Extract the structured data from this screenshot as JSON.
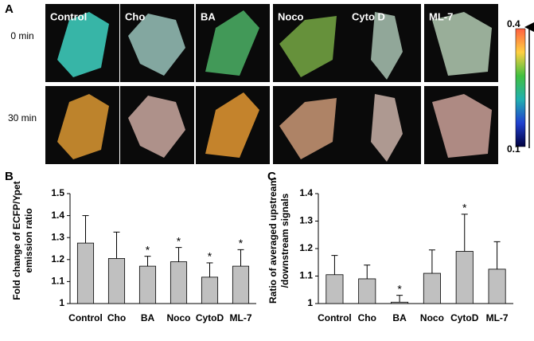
{
  "image_panel": {
    "label": "A",
    "columns": [
      "Control",
      "Cho",
      "BA",
      "Noco",
      "Cyto D",
      "ML-7"
    ],
    "rows": [
      "0 min",
      "30 min"
    ],
    "colorbar_ticks": [
      0.4,
      0.1
    ]
  },
  "chart_data": [
    {
      "type": "bar",
      "label": "B",
      "ylabel": [
        "Fold change of ECFP/Ypet",
        "emission ratio"
      ],
      "categories": [
        "Control",
        "Cho",
        "BA",
        "Noco",
        "CytoD",
        "ML-7"
      ],
      "values": [
        1.275,
        1.205,
        1.17,
        1.19,
        1.12,
        1.17
      ],
      "errors": [
        0.125,
        0.12,
        0.045,
        0.065,
        0.065,
        0.075
      ],
      "annotations": [
        null,
        null,
        "*",
        "*",
        "*",
        "*"
      ],
      "color": "#c0c0c0",
      "ylim": [
        1,
        1.5
      ],
      "yticks": [
        1,
        1.1,
        1.2,
        1.3,
        1.4,
        1.5
      ]
    },
    {
      "type": "bar",
      "label": "C",
      "ylabel": [
        "Ratio of averaged upstream",
        "/downstream signals"
      ],
      "categories": [
        "Control",
        "Cho",
        "BA",
        "Noco",
        "CytoD",
        "ML-7"
      ],
      "values": [
        1.105,
        1.09,
        1.005,
        1.11,
        1.19,
        1.125
      ],
      "errors": [
        0.07,
        0.05,
        0.025,
        0.085,
        0.135,
        0.1
      ],
      "annotations": [
        null,
        null,
        "*",
        null,
        "*",
        null
      ],
      "color": "#c0c0c0",
      "ylim": [
        1,
        1.4
      ],
      "yticks": [
        1,
        1.1,
        1.2,
        1.3,
        1.4
      ]
    }
  ]
}
